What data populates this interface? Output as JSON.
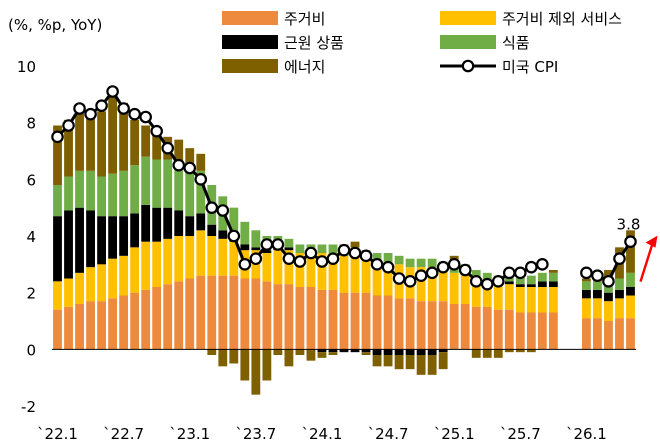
{
  "chart_data": {
    "type": "bar",
    "stacked": true,
    "yunit_label": "(%, %p, YoY)",
    "ylim": [
      -2,
      10
    ],
    "yticks": [
      -2,
      0,
      2,
      4,
      6,
      8,
      10
    ],
    "xtick_labels": [
      "`22.1",
      "`22.7",
      "`23.1",
      "`23.7",
      "`24.1",
      "`24.7",
      "`25.1",
      "`25.7",
      "`26.1"
    ],
    "xtick_every": 6,
    "grid": false,
    "legend_position": "top",
    "colors": {
      "shelter": "#ED8A3E",
      "services_ex_shelter": "#FFC000",
      "core_goods": "#000000",
      "food": "#70AD47",
      "energy": "#7F6000",
      "cpi": "#000000",
      "arrow": "#FF0000"
    },
    "annotation": {
      "text": "3.8"
    },
    "x": [
      "2022-01",
      "2022-02",
      "2022-03",
      "2022-04",
      "2022-05",
      "2022-06",
      "2022-07",
      "2022-08",
      "2022-09",
      "2022-10",
      "2022-11",
      "2022-12",
      "2023-01",
      "2023-02",
      "2023-03",
      "2023-04",
      "2023-05",
      "2023-06",
      "2023-07",
      "2023-08",
      "2023-09",
      "2023-10",
      "2023-11",
      "2023-12",
      "2024-01",
      "2024-02",
      "2024-03",
      "2024-04",
      "2024-05",
      "2024-06",
      "2024-07",
      "2024-08",
      "2024-09",
      "2024-10",
      "2024-11",
      "2024-12",
      "2025-01",
      "2025-02",
      "2025-03",
      "2025-04",
      "2025-05",
      "2025-06",
      "2025-07",
      "2025-08",
      "2025-09",
      "2025-10",
      "2025-11",
      "2025-12",
      "2026-01",
      "2026-02",
      "2026-03",
      "2026-04",
      "2026-05"
    ],
    "series": [
      {
        "key": "shelter",
        "name": "주거비",
        "kind": "bar",
        "values": [
          1.4,
          1.5,
          1.6,
          1.7,
          1.7,
          1.8,
          1.9,
          2.0,
          2.1,
          2.2,
          2.3,
          2.4,
          2.5,
          2.6,
          2.6,
          2.6,
          2.6,
          2.5,
          2.5,
          2.4,
          2.3,
          2.3,
          2.2,
          2.2,
          2.1,
          2.1,
          2.0,
          2.0,
          2.0,
          1.9,
          1.9,
          1.8,
          1.8,
          1.7,
          1.7,
          1.7,
          1.6,
          1.6,
          1.5,
          1.5,
          1.4,
          1.4,
          1.3,
          1.3,
          1.3,
          1.3,
          null,
          null,
          1.1,
          1.1,
          1.0,
          1.1,
          1.1
        ]
      },
      {
        "key": "services_ex_shelter",
        "name": "주거비 제외 서비스",
        "kind": "bar",
        "values": [
          1.0,
          1.0,
          1.1,
          1.2,
          1.3,
          1.4,
          1.4,
          1.6,
          1.7,
          1.6,
          1.6,
          1.6,
          1.5,
          1.6,
          1.4,
          1.3,
          1.2,
          1.0,
          1.0,
          1.0,
          1.2,
          1.2,
          1.2,
          1.2,
          1.3,
          1.3,
          1.3,
          1.3,
          1.2,
          1.2,
          1.2,
          1.2,
          1.1,
          1.2,
          1.2,
          1.1,
          1.1,
          1.1,
          1.0,
          0.9,
          0.9,
          0.9,
          0.9,
          0.9,
          0.9,
          0.9,
          null,
          null,
          0.7,
          0.7,
          0.7,
          0.7,
          0.8
        ]
      },
      {
        "key": "core_goods",
        "name": "근원 상품",
        "kind": "bar",
        "values": [
          2.3,
          2.4,
          2.3,
          2.0,
          1.7,
          1.5,
          1.4,
          1.2,
          1.3,
          1.2,
          1.1,
          0.9,
          0.7,
          0.6,
          0.4,
          0.3,
          0.2,
          0.2,
          0.1,
          0.1,
          0.1,
          0.1,
          0.0,
          0.0,
          -0.1,
          -0.1,
          -0.1,
          -0.1,
          -0.1,
          -0.2,
          -0.2,
          -0.2,
          -0.2,
          -0.2,
          -0.2,
          -0.1,
          0.0,
          0.0,
          0.0,
          0.0,
          0.0,
          0.1,
          0.1,
          0.1,
          0.2,
          0.2,
          null,
          null,
          0.3,
          0.3,
          0.3,
          0.3,
          0.3
        ]
      },
      {
        "key": "food",
        "name": "식품",
        "kind": "bar",
        "values": [
          1.1,
          1.2,
          1.3,
          1.4,
          1.4,
          1.5,
          1.6,
          1.7,
          1.7,
          1.7,
          1.7,
          1.7,
          1.6,
          1.5,
          1.4,
          1.2,
          1.0,
          0.8,
          0.6,
          0.5,
          0.4,
          0.3,
          0.3,
          0.3,
          0.3,
          0.3,
          0.3,
          0.3,
          0.3,
          0.3,
          0.3,
          0.3,
          0.3,
          0.3,
          0.3,
          0.3,
          0.3,
          0.3,
          0.3,
          0.3,
          0.3,
          0.3,
          0.3,
          0.3,
          0.3,
          0.3,
          null,
          null,
          0.3,
          0.3,
          0.4,
          0.4,
          0.5
        ]
      },
      {
        "key": "energy",
        "name": "에너지",
        "kind": "bar",
        "values": [
          2.1,
          2.0,
          2.2,
          2.0,
          2.3,
          2.7,
          2.4,
          1.6,
          1.1,
          1.0,
          0.8,
          0.8,
          0.8,
          0.6,
          -0.2,
          -0.6,
          -0.5,
          -1.1,
          -1.6,
          -1.1,
          -0.2,
          -0.6,
          -0.2,
          -0.4,
          -0.2,
          -0.1,
          0.1,
          0.2,
          -0.1,
          -0.4,
          -0.4,
          -0.5,
          -0.5,
          -0.7,
          -0.7,
          -0.6,
          0.3,
          0.0,
          -0.3,
          -0.3,
          -0.3,
          -0.1,
          -0.1,
          -0.1,
          0.0,
          0.1,
          null,
          null,
          0.1,
          0.2,
          0.4,
          1.1,
          1.5
        ]
      },
      {
        "key": "cpi",
        "name": "미국 CPI",
        "kind": "line",
        "values": [
          7.5,
          7.9,
          8.5,
          8.3,
          8.6,
          9.1,
          8.5,
          8.3,
          8.2,
          7.7,
          7.1,
          6.5,
          6.4,
          6.0,
          5.0,
          4.9,
          4.0,
          3.0,
          3.2,
          3.7,
          3.7,
          3.2,
          3.1,
          3.4,
          3.1,
          3.2,
          3.5,
          3.4,
          3.3,
          3.0,
          2.9,
          2.5,
          2.4,
          2.6,
          2.7,
          2.9,
          3.0,
          2.8,
          2.4,
          2.3,
          2.4,
          2.7,
          2.7,
          2.9,
          3.0,
          null,
          null,
          null,
          2.7,
          2.6,
          2.4,
          3.2,
          3.8
        ]
      }
    ]
  }
}
